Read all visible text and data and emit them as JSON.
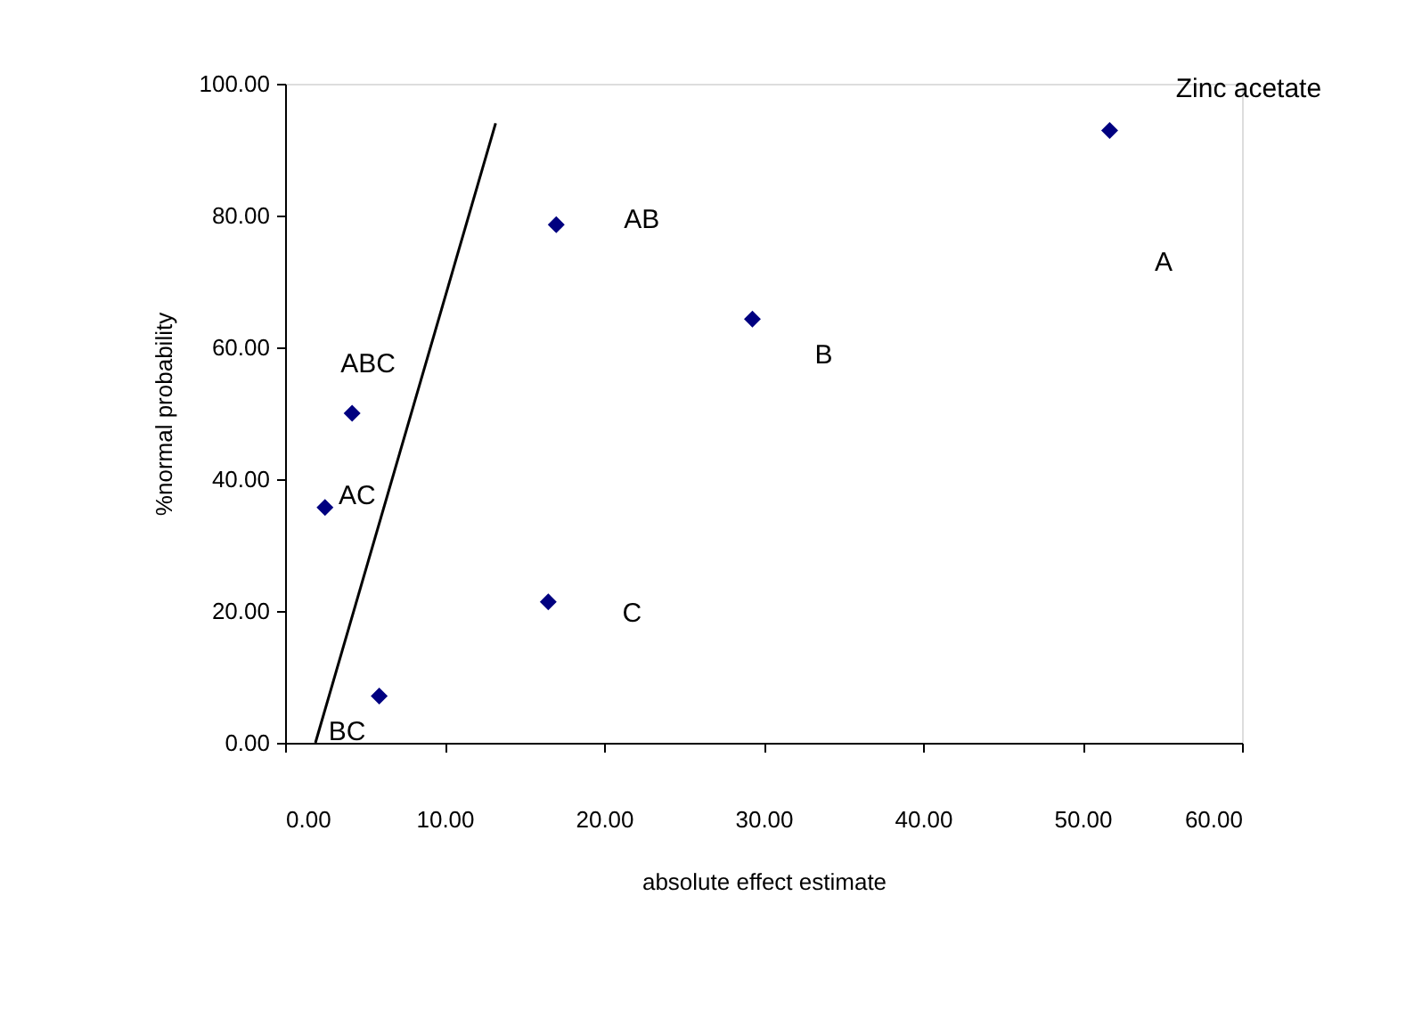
{
  "chart_data": {
    "type": "scatter",
    "xlabel": "absolute effect estimate",
    "ylabel": "%normal probability",
    "xlim": [
      0,
      60
    ],
    "ylim": [
      0,
      100
    ],
    "xticks": [
      {
        "value": 0,
        "label": "0.00"
      },
      {
        "value": 10,
        "label": "10.00"
      },
      {
        "value": 20,
        "label": "20.00"
      },
      {
        "value": 30,
        "label": "30.00"
      },
      {
        "value": 40,
        "label": "40.00"
      },
      {
        "value": 50,
        "label": "50.00"
      },
      {
        "value": 60,
        "label": "60.00"
      }
    ],
    "yticks": [
      {
        "value": 0,
        "label": "0.00"
      },
      {
        "value": 20,
        "label": "20.00"
      },
      {
        "value": 40,
        "label": "40.00"
      },
      {
        "value": 60,
        "label": "60.00"
      },
      {
        "value": 80,
        "label": "80.00"
      },
      {
        "value": 100,
        "label": "100.00"
      }
    ],
    "grid": false,
    "series": [
      {
        "color": "#000080",
        "marker": "diamond",
        "x": [
          51.7,
          17.0,
          29.3,
          4.2,
          2.5,
          16.5,
          5.9
        ],
        "values": [
          92.9,
          78.6,
          64.3,
          50.0,
          35.7,
          21.4,
          7.1
        ]
      },
      {
        "type": "line",
        "color": "#000000",
        "line_style": "solid",
        "x": [
          1.9,
          13.2
        ],
        "values": [
          0,
          94
        ]
      }
    ],
    "annotations": [
      {
        "text": "Zinc acetate",
        "x": 51.7,
        "y": 92.9
      },
      "A",
      {
        "text": "AB",
        "x": 17.0,
        "y": 78.6
      },
      {
        "text": "B",
        "x": 29.3,
        "y": 64.3
      },
      {
        "text": "ABC",
        "x": 4.2,
        "y": 50.0
      },
      {
        "text": "AC",
        "x": 2.5,
        "y": 35.7
      },
      {
        "text": "C",
        "x": 16.5,
        "y": 21.4
      },
      {
        "text": "BC",
        "x": 5.9,
        "y": 7.1
      }
    ]
  }
}
